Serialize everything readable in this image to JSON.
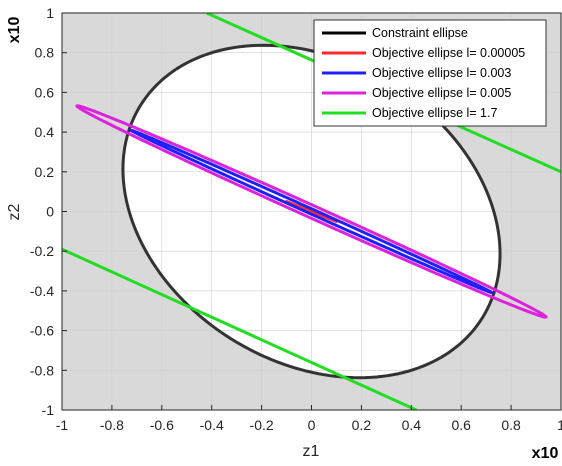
{
  "chart_data": {
    "type": "line",
    "xlabel": "z1",
    "ylabel": "z2",
    "x_multiplier_label": "x10",
    "y_multiplier_label": "x10",
    "xlim": [
      -1,
      1
    ],
    "ylim": [
      -1,
      1
    ],
    "x_ticks": [
      "-1",
      "-0.8",
      "-0.6",
      "-0.4",
      "-0.2",
      "0",
      "0.2",
      "0.4",
      "0.6",
      "0.8",
      "1"
    ],
    "y_ticks": [
      "-1",
      "-0.8",
      "-0.6",
      "-0.4",
      "-0.2",
      "0",
      "0.2",
      "0.4",
      "0.6",
      "0.8",
      "1"
    ],
    "x_tick_values": [
      -1,
      -0.8,
      -0.6,
      -0.4,
      -0.2,
      0,
      0.2,
      0.4,
      0.6,
      0.8,
      1
    ],
    "y_tick_values": [
      -1,
      -0.8,
      -0.6,
      -0.4,
      -0.2,
      0,
      0.2,
      0.4,
      0.6,
      0.8,
      1
    ],
    "grid": true,
    "legend_position": "top-right",
    "background_outside_constraint": "#d9d9d9",
    "background_inside_constraint": "#ffffff",
    "series": [
      {
        "name": "Constraint ellipse",
        "color": "#333333",
        "kind": "ellipse",
        "center": [
          0,
          0
        ],
        "semi_major": 0.9,
        "semi_minor": 0.68,
        "rotation_deg": -56
      },
      {
        "name": "Objective ellipse l= 0.00005",
        "color": "#ff2a2a",
        "kind": "segment",
        "points": [
          [
            -0.1,
            0.05
          ],
          [
            0.1,
            -0.05
          ]
        ]
      },
      {
        "name": "Objective ellipse l= 0.003",
        "color": "#1f1fff",
        "kind": "ellipse",
        "center": [
          0,
          0
        ],
        "semi_major": 0.83,
        "semi_minor": 0.012,
        "rotation_deg": -29.5
      },
      {
        "name": "Objective ellipse l= 0.005",
        "color": "#dd22dd",
        "kind": "ellipse",
        "center": [
          0,
          0
        ],
        "semi_major": 1.08,
        "semi_minor": 0.03,
        "rotation_deg": -29.5
      },
      {
        "name": "Objective ellipse l= 1.7",
        "color": "#22dd22",
        "kind": "lines",
        "lines": [
          [
            [
              -0.42,
              1.0
            ],
            [
              1.0,
              0.2
            ]
          ],
          [
            [
              -1.0,
              -0.19
            ],
            [
              0.42,
              -1.0
            ]
          ]
        ]
      }
    ]
  }
}
